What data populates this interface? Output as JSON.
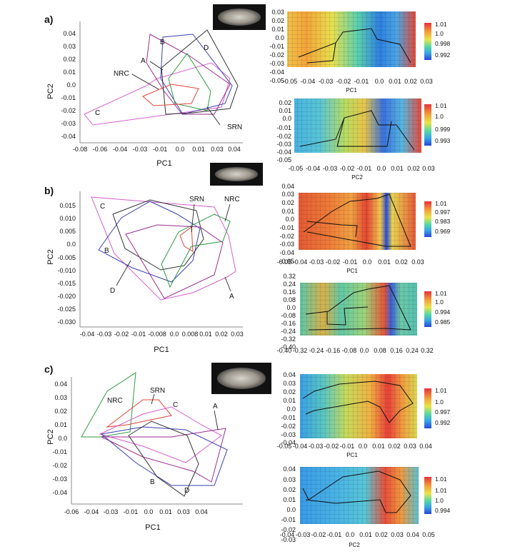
{
  "panels": [
    {
      "label": "a)",
      "pca": {
        "xlabel": "PC1",
        "ylabel": "PC2",
        "xticks": [
          "-0.08",
          "-0.06",
          "-0.04",
          "-0.03",
          "-0.01",
          "0.0",
          "0.01",
          "0.03",
          "0.04"
        ],
        "yticks": [
          "0.04",
          "0.03",
          "0.02",
          "0.01",
          "0.0",
          "-0.01",
          "-0.02",
          "-0.03",
          "-0.04"
        ],
        "groups": [
          "A",
          "B",
          "C",
          "D",
          "NRC",
          "SRN"
        ]
      },
      "heatmaps": [
        {
          "xlabel": "PC1",
          "xticks": [
            "-0.05",
            "-0.04",
            "-0.03",
            "-0.02",
            "-0.01",
            "0.0",
            "0.01",
            "0.02",
            "0.03"
          ],
          "yticks": [
            "0.03",
            "0.02",
            "0.01",
            "0.0",
            "-0.01",
            "-0.02",
            "-0.03",
            "-0.04",
            "-0.05"
          ],
          "colorbar": [
            "1.01",
            "1.0",
            "0.998",
            "0.992"
          ]
        },
        {
          "xlabel": "PC2",
          "xticks": [
            "-0.05",
            "-0.04",
            "-0.03",
            "-0.02",
            "-0.01",
            "0.0",
            "0.01",
            "0.02",
            "0.03"
          ],
          "yticks": [
            "0.02",
            "0.01",
            "0.0",
            "-0.01",
            "-0.02",
            "-0.03",
            "-0.04",
            "-0.05"
          ],
          "colorbar": [
            "1.01",
            "1.0",
            "0.999",
            "0.993"
          ]
        }
      ]
    },
    {
      "label": "b)",
      "pca": {
        "xlabel": "PC1",
        "ylabel": "PC2",
        "xticks": [
          "-0.04",
          "-0.03",
          "-0.02",
          "-0.01",
          "-0.008",
          "0.0",
          "0.008",
          "0.01",
          "0.02",
          "0.03"
        ],
        "yticks": [
          "0.015",
          "0.010",
          "0.005",
          "0.0",
          "-0.005",
          "-0.010",
          "-0.015",
          "-0.020",
          "-0.025",
          "-0.030"
        ],
        "groups": [
          "C",
          "B",
          "D",
          "SRN",
          "NRC",
          "A"
        ]
      },
      "heatmaps": [
        {
          "xlabel": "PC1",
          "xticks": [
            "-0.05",
            "-0.04",
            "-0.03",
            "-0.02",
            "-0.01",
            "0.0",
            "0.01",
            "0.02",
            "0.03"
          ],
          "yticks": [
            "0.04",
            "0.03",
            "0.02",
            "0.01",
            "0.0",
            "-0.01",
            "-0.02",
            "-0.03",
            "-0.04",
            "-0.05"
          ],
          "colorbar": [
            "1.01",
            "0.997",
            "0.983",
            "0.969"
          ]
        },
        {
          "xlabel": "PC2",
          "xticks": [
            "-0.40",
            "-0.32",
            "-0.24",
            "-0.16",
            "-0.08",
            "0.0",
            "0.08",
            "0.16",
            "0.24",
            "0.32"
          ],
          "yticks": [
            "0.32",
            "0.24",
            "0.16",
            "0.08",
            "0.0",
            "-0.08",
            "-0.16",
            "-0.24",
            "-0.32",
            "-0.40"
          ],
          "colorbar": [
            "1.01",
            "1.0",
            "0.994",
            "0.985"
          ]
        }
      ]
    },
    {
      "label": "c)",
      "pca": {
        "xlabel": "PC1",
        "ylabel": "PC2",
        "xticks": [
          "-0.06",
          "-0.04",
          "-0.03",
          "-0.01",
          "0.0",
          "0.01",
          "0.03",
          "0.04"
        ],
        "yticks": [
          "0.04",
          "0.03",
          "0.02",
          "0.01",
          "0.0",
          "-0.01",
          "-0.02",
          "-0.03",
          "-0.04"
        ],
        "groups": [
          "NRC",
          "SRN",
          "C",
          "A",
          "B",
          "D"
        ]
      },
      "heatmaps": [
        {
          "xlabel": "PC1",
          "xticks": [
            "-0.05",
            "-0.04",
            "-0.03",
            "-0.02",
            "-0.01",
            "0.0",
            "0.01",
            "0.02",
            "0.03",
            "0.04"
          ],
          "yticks": [
            "0.04",
            "0.03",
            "0.02",
            "0.01",
            "0.0",
            "-0.01",
            "-0.02",
            "-0.03",
            "-0.04"
          ],
          "colorbar": [
            "1.01",
            "1.0",
            "0.997",
            "0.992"
          ]
        },
        {
          "xlabel": "PC2",
          "xticks": [
            "-0.04",
            "-0.03",
            "-0.02",
            "-0.01",
            "0.0",
            "0.01",
            "0.02",
            "0.03",
            "0.04",
            "0.05"
          ],
          "yticks": [
            "0.04",
            "0.03",
            "0.02",
            "0.01",
            "0.0",
            "-0.01",
            "-0.02",
            "-0.03"
          ],
          "colorbar": [
            "1.01",
            "1.01",
            "1.0",
            "0.994"
          ]
        }
      ]
    }
  ],
  "colors": {
    "A": "#9b2d8e",
    "B": "#3a3fb0",
    "C": "#d65fd0",
    "D": "#333333",
    "NRC": "#2f9a3f",
    "SRN": "#e0453a"
  }
}
